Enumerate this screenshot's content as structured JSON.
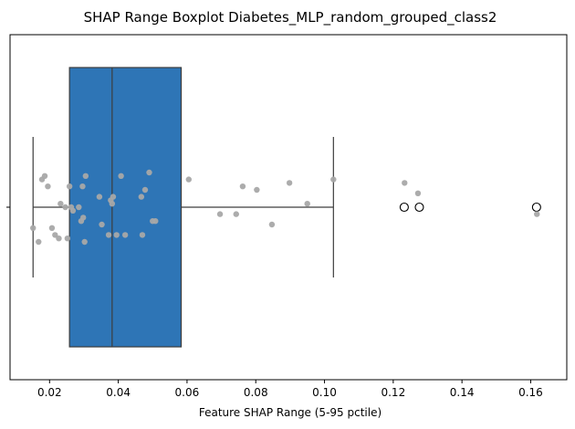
{
  "chart_data": {
    "type": "boxplot",
    "title": "SHAP Range Boxplot Diabetes_MLP_random_grouped_class2",
    "xlabel": "Feature SHAP Range (5-95 pctile)",
    "ylabel": "",
    "xlim": [
      0.0085,
      0.1705
    ],
    "x_ticks": [
      0.02,
      0.04,
      0.06,
      0.08,
      0.1,
      0.12,
      0.14,
      0.16
    ],
    "x_tick_labels": [
      "0.02",
      "0.04",
      "0.06",
      "0.08",
      "0.10",
      "0.12",
      "0.14",
      "0.16"
    ],
    "y_tick_labels": [
      ""
    ],
    "grid": false,
    "box": {
      "whisker_low": 0.0152,
      "q1": 0.0258,
      "median": 0.0382,
      "q3": 0.0583,
      "whisker_high": 0.1026,
      "outliers": [
        0.1232,
        0.1276,
        0.1617
      ]
    },
    "points": [
      {
        "x": 0.0152,
        "y": -0.06
      },
      {
        "x": 0.0168,
        "y": -0.1
      },
      {
        "x": 0.0178,
        "y": 0.08
      },
      {
        "x": 0.0186,
        "y": 0.09
      },
      {
        "x": 0.0195,
        "y": 0.06
      },
      {
        "x": 0.0207,
        "y": -0.06
      },
      {
        "x": 0.0216,
        "y": -0.08
      },
      {
        "x": 0.0227,
        "y": -0.09
      },
      {
        "x": 0.0232,
        "y": 0.01
      },
      {
        "x": 0.0246,
        "y": 0.0
      },
      {
        "x": 0.0252,
        "y": -0.09
      },
      {
        "x": 0.0258,
        "y": 0.06
      },
      {
        "x": 0.0263,
        "y": 0.0
      },
      {
        "x": 0.0268,
        "y": -0.01
      },
      {
        "x": 0.0285,
        "y": 0.0
      },
      {
        "x": 0.0292,
        "y": -0.04
      },
      {
        "x": 0.0296,
        "y": 0.06
      },
      {
        "x": 0.0298,
        "y": -0.03
      },
      {
        "x": 0.0302,
        "y": -0.1
      },
      {
        "x": 0.0305,
        "y": 0.09
      },
      {
        "x": 0.0345,
        "y": 0.03
      },
      {
        "x": 0.0352,
        "y": -0.05
      },
      {
        "x": 0.0372,
        "y": -0.08
      },
      {
        "x": 0.0378,
        "y": 0.02
      },
      {
        "x": 0.0382,
        "y": 0.01
      },
      {
        "x": 0.0385,
        "y": 0.03
      },
      {
        "x": 0.0395,
        "y": -0.08
      },
      {
        "x": 0.0408,
        "y": 0.09
      },
      {
        "x": 0.042,
        "y": -0.08
      },
      {
        "x": 0.0467,
        "y": 0.03
      },
      {
        "x": 0.047,
        "y": -0.08
      },
      {
        "x": 0.0478,
        "y": 0.05
      },
      {
        "x": 0.049,
        "y": 0.1
      },
      {
        "x": 0.05,
        "y": -0.04
      },
      {
        "x": 0.0508,
        "y": -0.04
      },
      {
        "x": 0.0605,
        "y": 0.08
      },
      {
        "x": 0.0696,
        "y": -0.02
      },
      {
        "x": 0.0743,
        "y": -0.02
      },
      {
        "x": 0.0762,
        "y": 0.06
      },
      {
        "x": 0.0803,
        "y": 0.05
      },
      {
        "x": 0.0847,
        "y": -0.05
      },
      {
        "x": 0.0898,
        "y": 0.07
      },
      {
        "x": 0.095,
        "y": 0.01
      },
      {
        "x": 0.1026,
        "y": 0.08
      },
      {
        "x": 0.1233,
        "y": 0.07
      },
      {
        "x": 0.1272,
        "y": 0.04
      },
      {
        "x": 0.1618,
        "y": -0.02
      }
    ],
    "colors": {
      "box_fill": "#2e75b6",
      "box_edge": "#3d3d3d",
      "point": "#a8a8a8",
      "axis": "#000000"
    }
  }
}
